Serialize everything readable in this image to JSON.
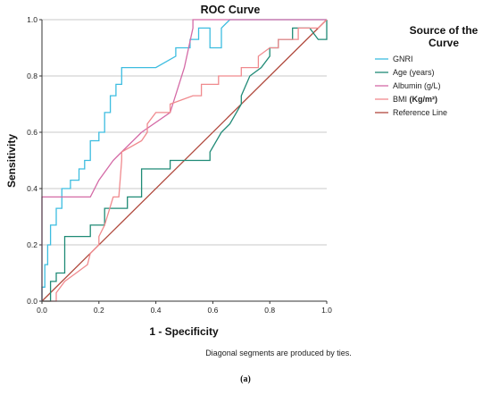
{
  "chart_data": {
    "type": "line",
    "title": "ROC Curve",
    "xlabel": "1 - Specificity",
    "ylabel": "Sensitivity",
    "xlim": [
      0,
      1
    ],
    "ylim": [
      0,
      1
    ],
    "xticks": [
      "0.0",
      "0.2",
      "0.4",
      "0.6",
      "0.8",
      "1.0"
    ],
    "yticks": [
      "0.0",
      "0.2",
      "0.4",
      "0.6",
      "0.8",
      "1.0"
    ],
    "grid": "horizontal",
    "legend": {
      "title": "Source of the Curve",
      "placement": "right",
      "entries": [
        "GNRI",
        "Age (years)",
        "Albumin (g/L)",
        "BMI",
        "Reference Line"
      ],
      "bmi_unit": "(Kg/m²)"
    },
    "footnote": "Diagonal segments are produced by ties.",
    "caption": "(a)",
    "series": [
      {
        "name": "GNRI",
        "color": "#3dbde0",
        "x": [
          0,
          0,
          0.01,
          0.01,
          0.02,
          0.02,
          0.03,
          0.03,
          0.05,
          0.05,
          0.07,
          0.07,
          0.1,
          0.1,
          0.13,
          0.13,
          0.15,
          0.15,
          0.17,
          0.17,
          0.2,
          0.2,
          0.22,
          0.22,
          0.24,
          0.24,
          0.26,
          0.26,
          0.28,
          0.28,
          0.4,
          0.47,
          0.47,
          0.52,
          0.52,
          0.55,
          0.55,
          0.59,
          0.59,
          0.63,
          0.63,
          0.66,
          1.0
        ],
        "y": [
          0,
          0.05,
          0.05,
          0.13,
          0.13,
          0.2,
          0.2,
          0.27,
          0.27,
          0.33,
          0.33,
          0.4,
          0.4,
          0.43,
          0.43,
          0.47,
          0.47,
          0.5,
          0.5,
          0.57,
          0.57,
          0.6,
          0.6,
          0.67,
          0.67,
          0.73,
          0.73,
          0.77,
          0.77,
          0.83,
          0.83,
          0.87,
          0.9,
          0.9,
          0.93,
          0.93,
          0.97,
          0.97,
          0.9,
          0.9,
          0.97,
          1.0,
          1.0
        ]
      },
      {
        "name": "Age (years)",
        "color": "#1f8a76",
        "x": [
          0,
          0.03,
          0.03,
          0.05,
          0.05,
          0.08,
          0.08,
          0.17,
          0.17,
          0.22,
          0.22,
          0.3,
          0.3,
          0.35,
          0.35,
          0.45,
          0.45,
          0.59,
          0.59,
          0.63,
          0.66,
          0.7,
          0.7,
          0.73,
          0.77,
          0.8,
          0.8,
          0.83,
          0.83,
          0.88,
          0.88,
          0.94,
          0.97,
          1.0,
          1.0
        ],
        "y": [
          0,
          0,
          0.07,
          0.07,
          0.1,
          0.1,
          0.23,
          0.23,
          0.27,
          0.27,
          0.33,
          0.33,
          0.37,
          0.37,
          0.47,
          0.47,
          0.5,
          0.5,
          0.53,
          0.6,
          0.63,
          0.7,
          0.73,
          0.8,
          0.83,
          0.87,
          0.9,
          0.9,
          0.93,
          0.93,
          0.97,
          0.97,
          0.93,
          0.93,
          1.0
        ]
      },
      {
        "name": "Albumin (g/L)",
        "color": "#d46aa6",
        "x": [
          0,
          0,
          0.17,
          0.2,
          0.25,
          0.28,
          0.35,
          0.45,
          0.5,
          0.53,
          0.53,
          1.0
        ],
        "y": [
          0,
          0.37,
          0.37,
          0.43,
          0.5,
          0.53,
          0.6,
          0.67,
          0.83,
          0.97,
          1.0,
          1.0
        ]
      },
      {
        "name": "BMI",
        "color": "#f08a8e",
        "x": [
          0,
          0.05,
          0.05,
          0.08,
          0.12,
          0.16,
          0.17,
          0.2,
          0.2,
          0.22,
          0.25,
          0.27,
          0.28,
          0.28,
          0.35,
          0.37,
          0.37,
          0.4,
          0.45,
          0.45,
          0.53,
          0.56,
          0.56,
          0.62,
          0.62,
          0.7,
          0.7,
          0.76,
          0.76,
          0.8,
          0.83,
          0.83,
          0.9,
          0.9,
          0.97,
          1.0
        ],
        "y": [
          0,
          0,
          0.03,
          0.07,
          0.1,
          0.13,
          0.17,
          0.2,
          0.23,
          0.27,
          0.37,
          0.37,
          0.5,
          0.53,
          0.57,
          0.6,
          0.63,
          0.67,
          0.67,
          0.7,
          0.73,
          0.73,
          0.77,
          0.77,
          0.8,
          0.8,
          0.83,
          0.83,
          0.87,
          0.9,
          0.9,
          0.93,
          0.93,
          0.97,
          0.97,
          1.0
        ]
      },
      {
        "name": "Reference Line",
        "color": "#b0493d",
        "x": [
          0,
          1
        ],
        "y": [
          0,
          1
        ]
      }
    ]
  }
}
